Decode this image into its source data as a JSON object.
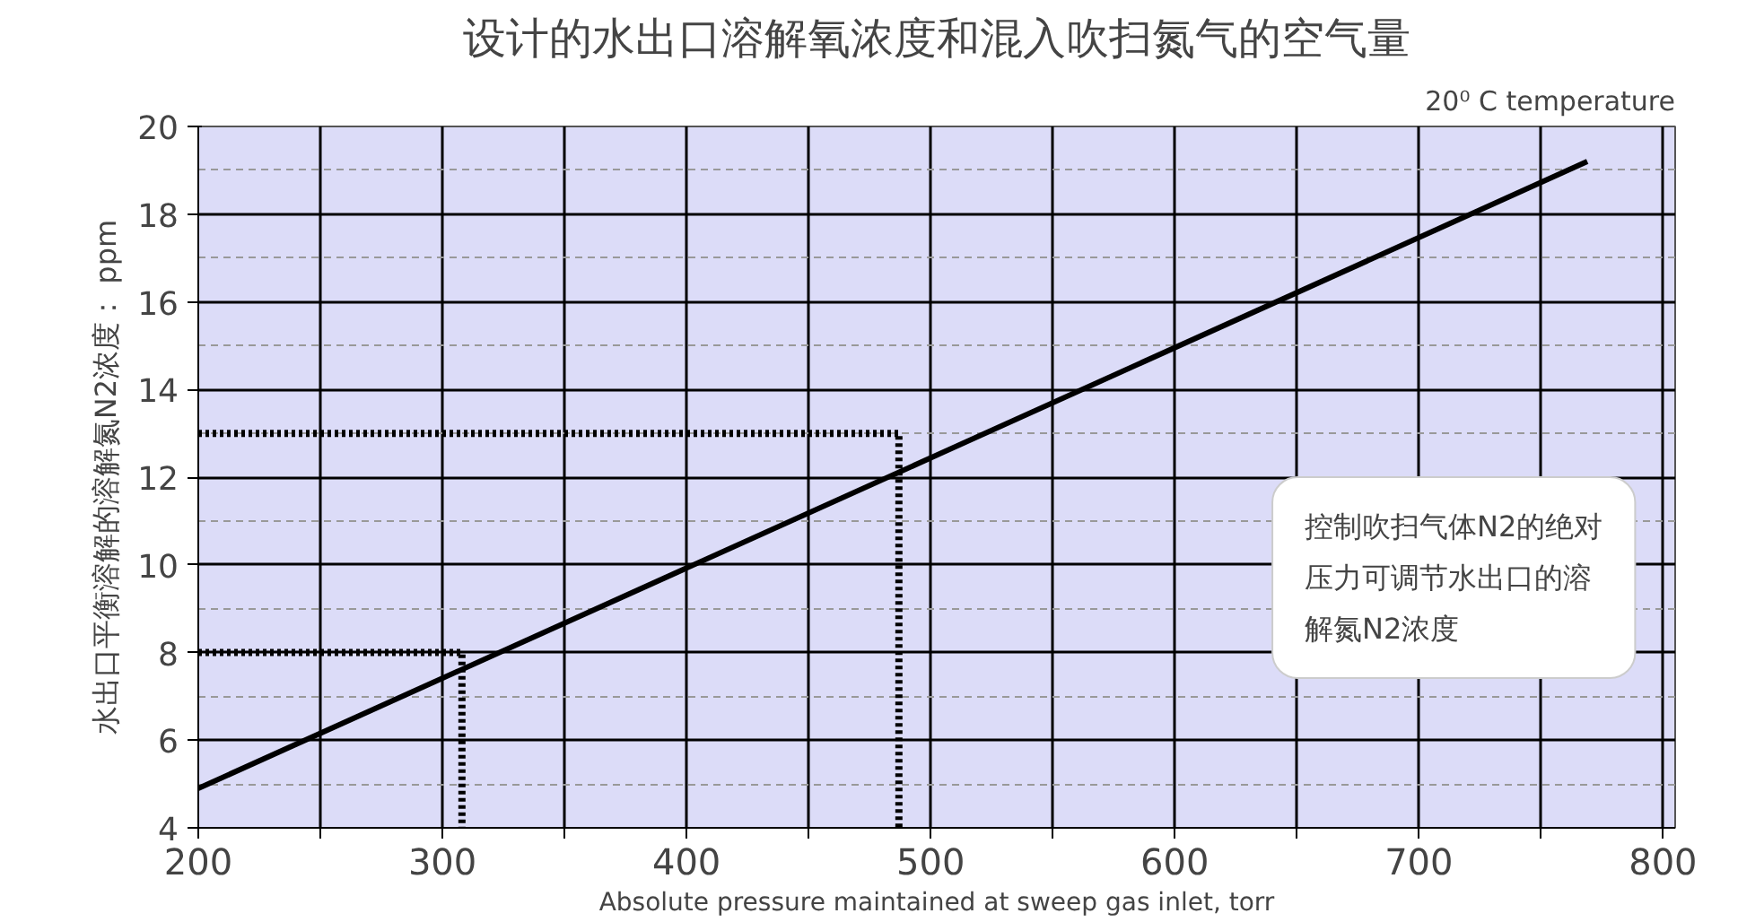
{
  "chart_data": {
    "type": "line",
    "title": "设计的水出口溶解氧浓度和混入吹扫氮气的空气量",
    "xlabel": "Absolute pressure maintained at sweep gas inlet, torr",
    "ylabel": "水出口平衡溶解的溶解氮N2浓度： ppm",
    "series": [
      {
        "color": "#000000",
        "x": [
          200,
          769
        ],
        "values": [
          4.9,
          19.2
        ],
        "line_style": "solid"
      },
      {
        "color": "#000000",
        "x": [
          200,
          308,
          308
        ],
        "values": [
          8,
          8,
          4
        ],
        "line_style": "dotted"
      },
      {
        "color": "#000000",
        "x": [
          200,
          487,
          487
        ],
        "values": [
          13,
          13,
          4
        ],
        "line_style": "dotted"
      }
    ],
    "xlim": [
      200,
      805
    ],
    "ylim": [
      4,
      20
    ],
    "xticks": [
      200,
      {
        "value": 250,
        "label": null
      },
      300,
      {
        "value": 350,
        "label": null
      },
      400,
      {
        "value": 450,
        "label": null
      },
      500,
      {
        "value": 550,
        "label": null
      },
      600,
      {
        "value": 650,
        "label": null
      },
      700,
      {
        "value": 750,
        "label": null
      },
      800
    ],
    "yticks": [
      4,
      6,
      8,
      10,
      12,
      14,
      16,
      18,
      20
    ],
    "grid": true,
    "annotations": [
      "20⁰ C temperature",
      "控制吹扫气体N2的绝对压力可调节水出口的溶解氮N2浓度"
    ]
  }
}
